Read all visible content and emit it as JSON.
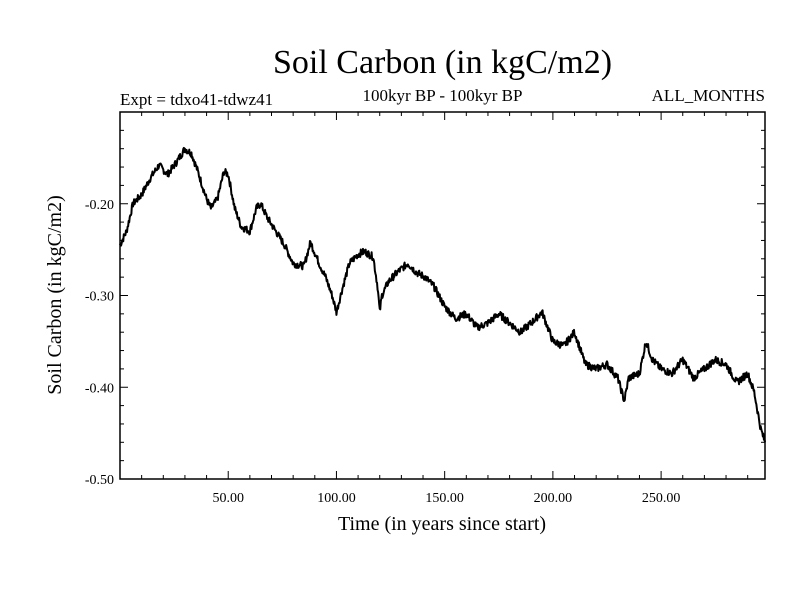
{
  "header": {
    "title": "Soil Carbon (in kgC/m2)",
    "experiment": "Expt = tdxo41-tdwz41",
    "subtitle": "100kyr BP - 100kyr BP",
    "months": "ALL_MONTHS"
  },
  "chart_data": {
    "type": "line",
    "title": "Soil Carbon (in kgC/m2)",
    "xlabel": "Time (in years since start)",
    "ylabel": "Soil Carbon (in kgC/m2)",
    "xlim": [
      0,
      298
    ],
    "ylim": [
      -0.5,
      -0.1
    ],
    "x_ticks": [
      50,
      100,
      150,
      200,
      250
    ],
    "x_tick_labels": [
      "50.00",
      "100.00",
      "150.00",
      "200.00",
      "250.00"
    ],
    "y_ticks": [
      -0.2,
      -0.3,
      -0.4,
      -0.5
    ],
    "y_tick_labels": [
      "-0.20",
      "-0.30",
      "-0.40",
      "-0.50"
    ],
    "line_color": "#000000",
    "series": [
      {
        "name": "Soil Carbon",
        "x": [
          0,
          3,
          6,
          10,
          14,
          18,
          22,
          26,
          30,
          33,
          36,
          40,
          42,
          45,
          48,
          50,
          53,
          56,
          60,
          63,
          65,
          68,
          72,
          76,
          80,
          85,
          88,
          92,
          95,
          98,
          100,
          103,
          106,
          110,
          113,
          117,
          119,
          120,
          121,
          124,
          128,
          133,
          137,
          141,
          145,
          150,
          155,
          160,
          165,
          170,
          175,
          180,
          185,
          190,
          195,
          200,
          205,
          210,
          215,
          220,
          225,
          230,
          233,
          235,
          240,
          243,
          246,
          250,
          255,
          260,
          265,
          270,
          275,
          280,
          285,
          290,
          293,
          296,
          298
        ],
        "values": [
          -0.245,
          -0.23,
          -0.2,
          -0.19,
          -0.172,
          -0.158,
          -0.168,
          -0.155,
          -0.14,
          -0.145,
          -0.165,
          -0.195,
          -0.205,
          -0.195,
          -0.165,
          -0.168,
          -0.205,
          -0.225,
          -0.23,
          -0.205,
          -0.2,
          -0.215,
          -0.23,
          -0.245,
          -0.265,
          -0.268,
          -0.242,
          -0.265,
          -0.28,
          -0.3,
          -0.318,
          -0.29,
          -0.265,
          -0.255,
          -0.252,
          -0.258,
          -0.29,
          -0.318,
          -0.3,
          -0.285,
          -0.275,
          -0.265,
          -0.275,
          -0.28,
          -0.29,
          -0.312,
          -0.325,
          -0.32,
          -0.335,
          -0.33,
          -0.32,
          -0.33,
          -0.34,
          -0.33,
          -0.318,
          -0.35,
          -0.355,
          -0.34,
          -0.375,
          -0.38,
          -0.375,
          -0.39,
          -0.415,
          -0.39,
          -0.385,
          -0.35,
          -0.37,
          -0.38,
          -0.385,
          -0.37,
          -0.39,
          -0.38,
          -0.37,
          -0.375,
          -0.395,
          -0.385,
          -0.405,
          -0.445,
          -0.46
        ]
      }
    ]
  }
}
